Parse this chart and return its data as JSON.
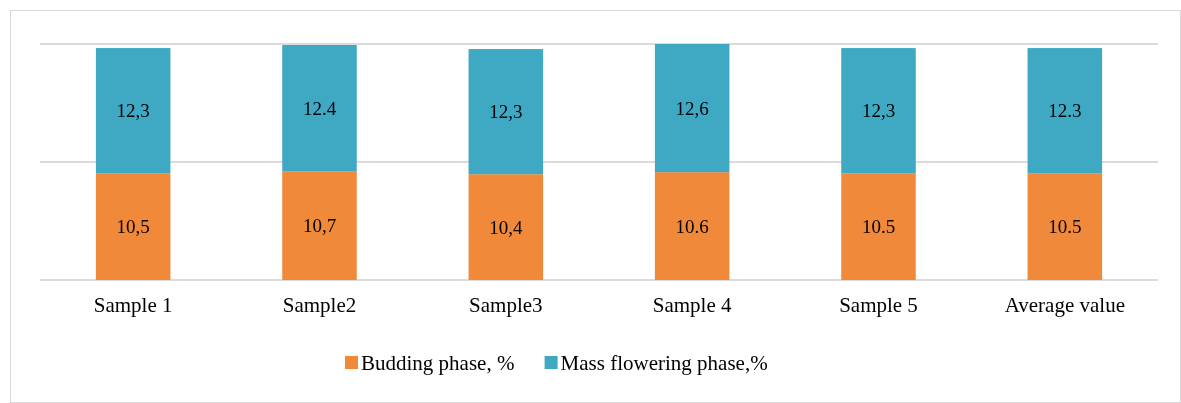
{
  "chart_data": {
    "type": "bar",
    "stacked": true,
    "categories": [
      "Sample 1",
      "Sample2",
      "Sample3",
      "Sample 4",
      "Sample 5",
      "Average value"
    ],
    "series": [
      {
        "name": "Budding phase, %",
        "color": "#f0893a",
        "values": [
          10.5,
          10.7,
          10.4,
          10.6,
          10.5,
          10.5
        ],
        "value_labels": [
          "10,5",
          "10,7",
          "10,4",
          "10.6",
          "10.5",
          "10.5"
        ]
      },
      {
        "name": "Mass flowering phase,%",
        "color": "#3fa9c4",
        "values": [
          12.3,
          12.4,
          12.3,
          12.6,
          12.3,
          12.3
        ],
        "value_labels": [
          "12,3",
          "12.4",
          "12,3",
          "12,6",
          "12,3",
          "12.3"
        ]
      }
    ],
    "ylim": [
      0,
      23.2
    ],
    "yticks": [
      {
        "value": 0,
        "label": null
      },
      {
        "value": 11.6,
        "label": null
      },
      {
        "value": 23.2,
        "label": null
      }
    ],
    "tick_labels": "x",
    "legend": "bottom"
  }
}
